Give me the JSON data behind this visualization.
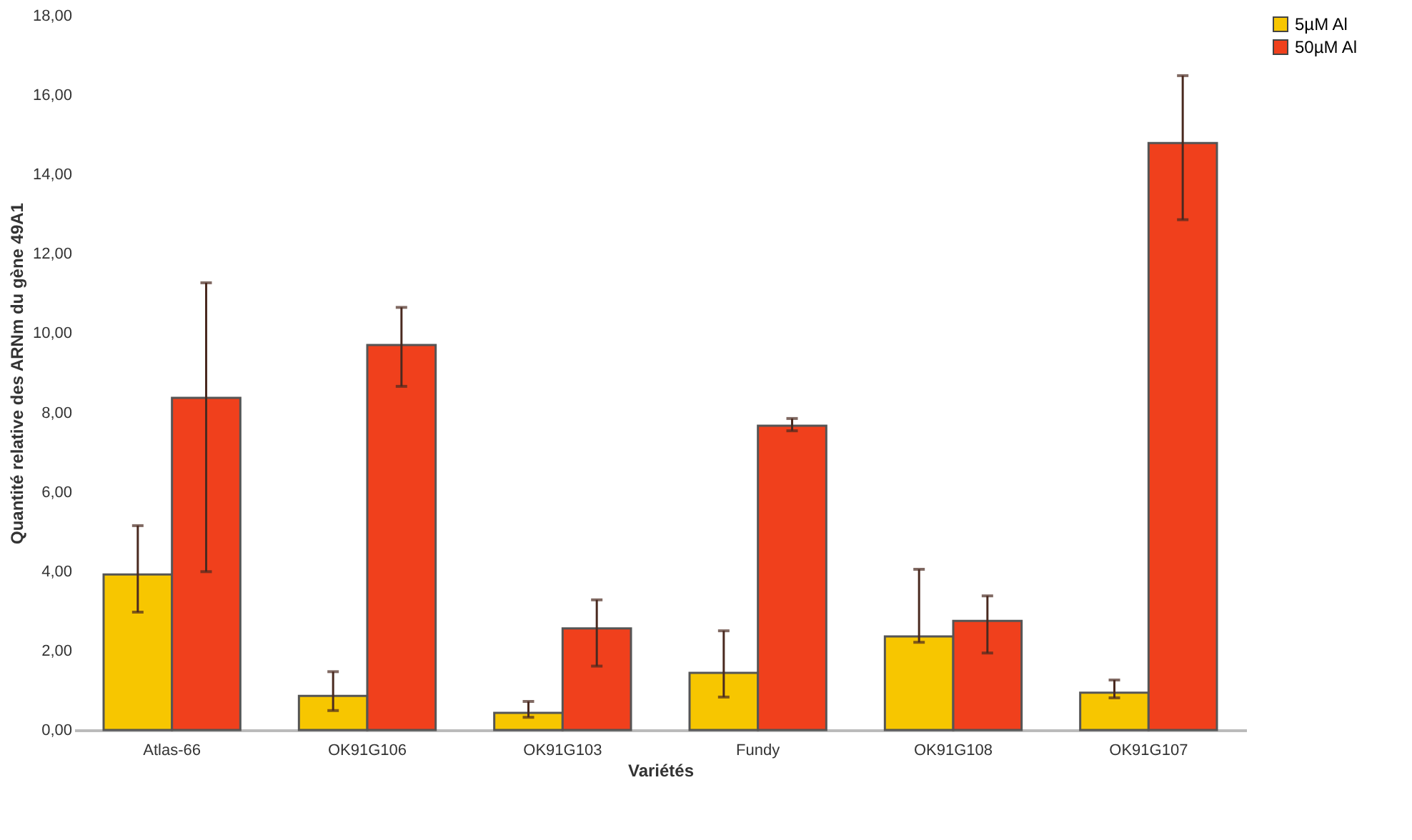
{
  "chart_data": {
    "type": "bar",
    "xlabel": "Variétés",
    "ylabel": "Quantité relative des ARNm du gène 49A1",
    "categories": [
      "Atlas-66",
      "OK91G106",
      "OK91G103",
      "Fundy",
      "OK91G108",
      "OK91G107"
    ],
    "series": [
      {
        "name": "5µM Al",
        "color": "#f7c600",
        "values": [
          3.92,
          0.86,
          0.43,
          1.44,
          2.36,
          0.94
        ],
        "errors": [
          [
            2.97,
            5.15
          ],
          [
            0.49,
            1.47
          ],
          [
            0.32,
            0.72
          ],
          [
            0.83,
            2.5
          ],
          [
            2.21,
            4.05
          ],
          [
            0.81,
            1.26
          ]
        ]
      },
      {
        "name": "50µM Al",
        "color": "#f0401c",
        "values": [
          8.37,
          9.7,
          2.56,
          7.67,
          2.75,
          14.79
        ],
        "errors": [
          [
            3.99,
            11.27
          ],
          [
            8.66,
            10.65
          ],
          [
            1.61,
            3.28
          ],
          [
            7.54,
            7.85
          ],
          [
            1.94,
            3.38
          ],
          [
            12.86,
            16.49
          ]
        ]
      }
    ],
    "ylim": [
      0,
      18
    ],
    "yticks": [
      {
        "value": 0,
        "label": "0,00"
      },
      {
        "value": 2,
        "label": "2,00"
      },
      {
        "value": 4,
        "label": "4,00"
      },
      {
        "value": 6,
        "label": "6,00"
      },
      {
        "value": 8,
        "label": "8,00"
      },
      {
        "value": 10,
        "label": "10,00"
      },
      {
        "value": 12,
        "label": "12,00"
      },
      {
        "value": 14,
        "label": "14,00"
      },
      {
        "value": 16,
        "label": "16,00"
      },
      {
        "value": 18,
        "label": "18,00"
      }
    ],
    "grid": false,
    "legend": "right"
  }
}
